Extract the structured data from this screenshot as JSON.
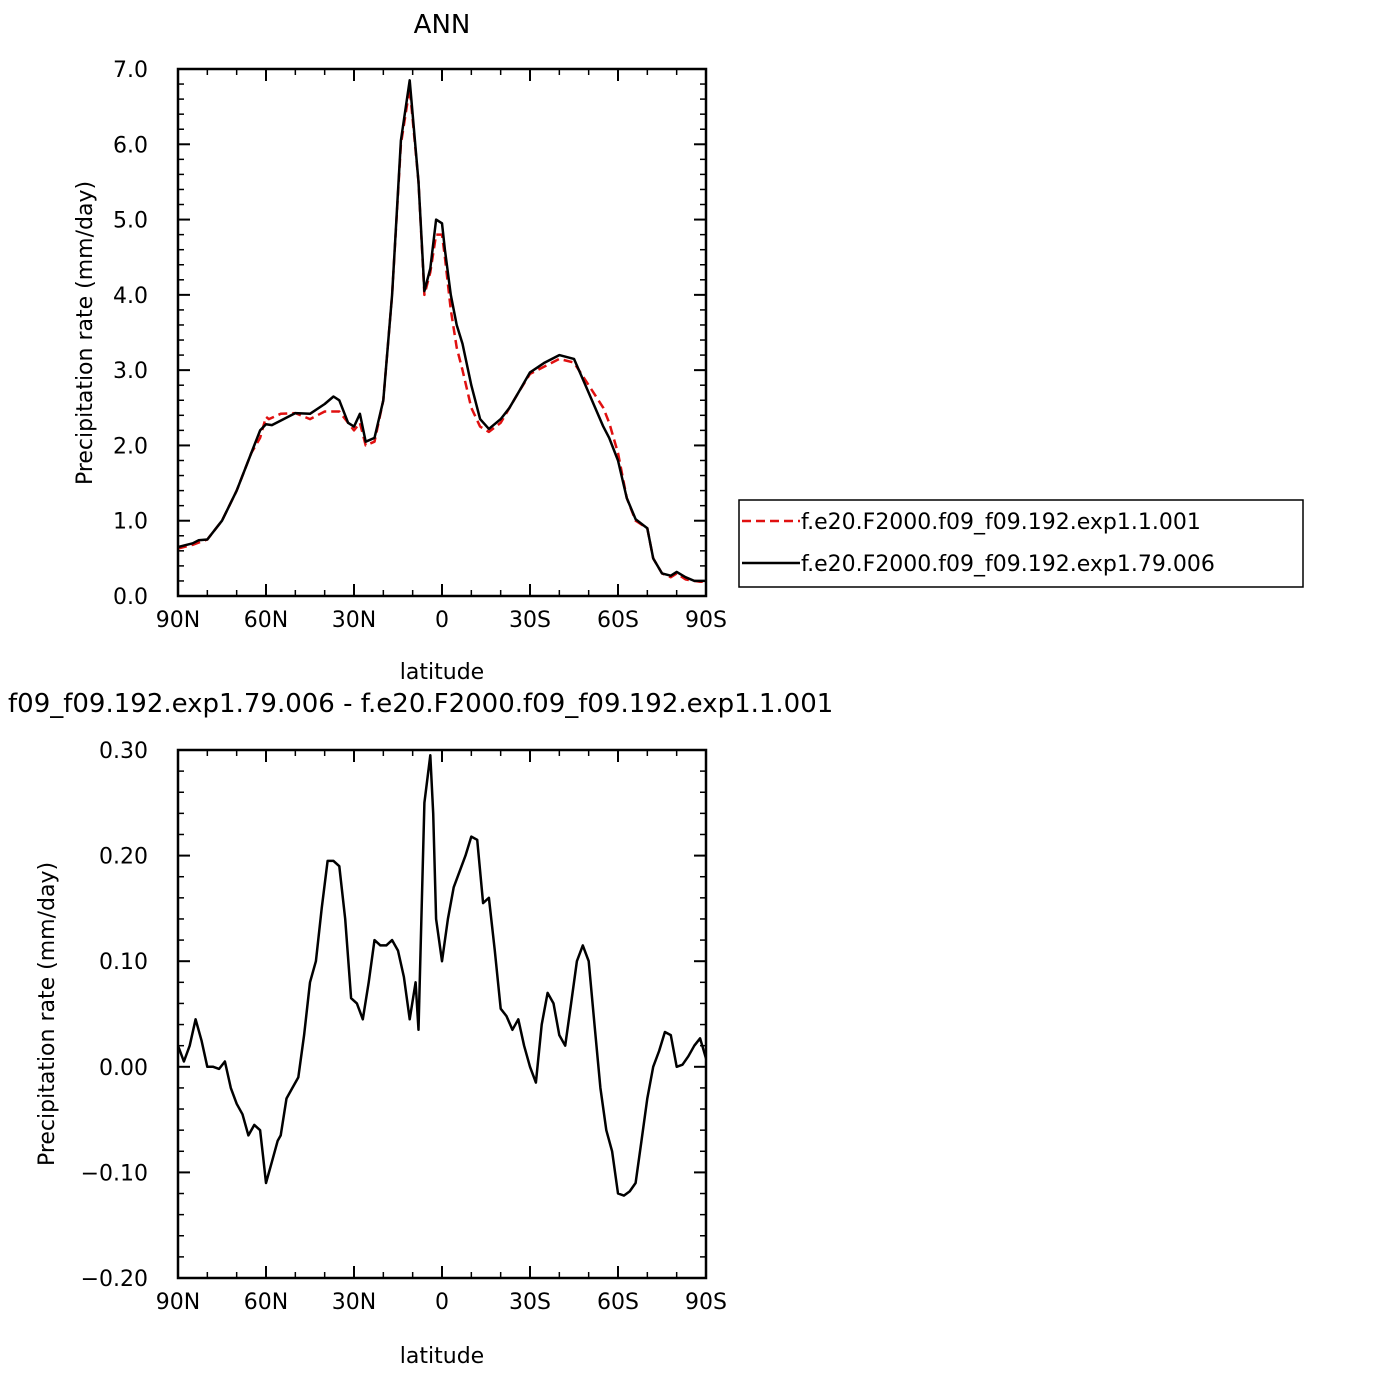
{
  "chart_data": [
    {
      "type": "line",
      "title": "ANN",
      "xlabel": "latitude",
      "ylabel": "Precipitation rate (mm/day)",
      "xlim": [
        90,
        -90
      ],
      "ylim": [
        0,
        7
      ],
      "x_ticks": [
        90,
        60,
        30,
        0,
        -30,
        -60,
        -90
      ],
      "x_tick_labels": [
        "90N",
        "60N",
        "30N",
        "0",
        "30S",
        "60S",
        "90S"
      ],
      "y_ticks": [
        0,
        1,
        2,
        3,
        4,
        5,
        6,
        7
      ],
      "y_tick_labels": [
        "0.0",
        "1.0",
        "2.0",
        "3.0",
        "4.0",
        "5.0",
        "6.0",
        "7.0"
      ],
      "legend": "right",
      "series": [
        {
          "name": "f.e20.F2000.f09_f09.192.exp1.1.001",
          "color": "#e01010",
          "dash": "dashed",
          "x": [
            90,
            85,
            80,
            75,
            70,
            65,
            62,
            60,
            59,
            55,
            50,
            45,
            40,
            35,
            30,
            28,
            26,
            23,
            20,
            17,
            14,
            11,
            8,
            6,
            4,
            2,
            0,
            -1,
            -3,
            -5,
            -7,
            -10,
            -13,
            -16,
            -20,
            -23,
            -26,
            -30,
            -35,
            -40,
            -45,
            -50,
            -55,
            -57,
            -60,
            -63,
            -66,
            -70,
            -72,
            -75,
            -78,
            -80,
            -83,
            -86,
            -88,
            -90
          ],
          "y": [
            0.63,
            0.68,
            0.75,
            1.0,
            1.4,
            1.9,
            2.1,
            2.38,
            2.35,
            2.42,
            2.43,
            2.35,
            2.45,
            2.45,
            2.2,
            2.3,
            2.0,
            2.05,
            2.6,
            4.0,
            6.0,
            6.75,
            5.5,
            4.0,
            4.3,
            4.8,
            4.8,
            4.5,
            3.8,
            3.3,
            3.0,
            2.5,
            2.25,
            2.18,
            2.3,
            2.5,
            2.7,
            2.95,
            3.05,
            3.15,
            3.1,
            2.8,
            2.5,
            2.3,
            1.9,
            1.3,
            1.0,
            0.9,
            0.5,
            0.3,
            0.25,
            0.3,
            0.22,
            0.2,
            0.19,
            0.19
          ]
        },
        {
          "name": "f.e20.F2000.f09_f09.192.exp1.79.006",
          "color": "#000000",
          "dash": "solid",
          "x": [
            90,
            85,
            83,
            80,
            75,
            70,
            65,
            62,
            60,
            58,
            55,
            50,
            45,
            40,
            37,
            35,
            32,
            30,
            28,
            26,
            23,
            20,
            17,
            14,
            11,
            8,
            6,
            4,
            2,
            0,
            -1,
            -3,
            -5,
            -7,
            -10,
            -13,
            -16,
            -20,
            -23,
            -26,
            -30,
            -35,
            -40,
            -45,
            -50,
            -55,
            -57,
            -60,
            -63,
            -66,
            -70,
            -72,
            -75,
            -78,
            -80,
            -83,
            -86,
            -88,
            -90
          ],
          "y": [
            0.65,
            0.7,
            0.74,
            0.75,
            1.0,
            1.4,
            1.9,
            2.2,
            2.28,
            2.27,
            2.33,
            2.43,
            2.42,
            2.55,
            2.65,
            2.6,
            2.3,
            2.25,
            2.42,
            2.05,
            2.1,
            2.6,
            4.0,
            6.05,
            6.85,
            5.5,
            4.05,
            4.35,
            5.0,
            4.95,
            4.6,
            4.0,
            3.6,
            3.35,
            2.8,
            2.35,
            2.22,
            2.35,
            2.5,
            2.7,
            2.97,
            3.1,
            3.2,
            3.15,
            2.7,
            2.25,
            2.1,
            1.8,
            1.3,
            1.02,
            0.9,
            0.5,
            0.3,
            0.27,
            0.32,
            0.25,
            0.2,
            0.2,
            0.2
          ]
        }
      ]
    },
    {
      "type": "line",
      "title": "f09_f09.192.exp1.79.006 - f.e20.F2000.f09_f09.192.exp1.1.001",
      "xlabel": "latitude",
      "ylabel": "Precipitation rate (mm/day)",
      "xlim": [
        90,
        -90
      ],
      "ylim": [
        -0.2,
        0.3
      ],
      "x_ticks": [
        90,
        60,
        30,
        0,
        -30,
        -60,
        -90
      ],
      "x_tick_labels": [
        "90N",
        "60N",
        "30N",
        "0",
        "30S",
        "60S",
        "90S"
      ],
      "y_ticks": [
        -0.2,
        -0.1,
        0,
        0.1,
        0.2,
        0.3
      ],
      "y_tick_labels": [
        "−0.20",
        "−0.10",
        "0.00",
        "0.10",
        "0.20",
        "0.30"
      ],
      "series": [
        {
          "color": "#000000",
          "dash": "solid",
          "x": [
            90,
            88,
            86,
            84,
            82,
            80,
            78,
            76,
            74,
            72,
            70,
            68,
            66,
            64,
            62,
            61,
            60,
            58,
            56,
            55,
            53,
            51,
            49,
            47,
            45,
            43,
            41,
            39,
            37,
            35,
            33,
            31,
            29,
            27,
            25,
            23,
            21,
            19,
            17,
            15,
            13,
            11,
            9,
            8,
            6,
            4,
            3,
            2,
            0,
            -2,
            -4,
            -6,
            -8,
            -10,
            -12,
            -14,
            -16,
            -18,
            -20,
            -22,
            -24,
            -26,
            -28,
            -30,
            -32,
            -34,
            -36,
            -38,
            -40,
            -42,
            -44,
            -46,
            -48,
            -50,
            -52,
            -54,
            -56,
            -58,
            -60,
            -62,
            -64,
            -66,
            -68,
            -70,
            -72,
            -74,
            -76,
            -78,
            -80,
            -82,
            -84,
            -86,
            -88,
            -90
          ],
          "y": [
            0.02,
            0.005,
            0.02,
            0.045,
            0.025,
            0.0,
            0.0,
            -0.002,
            0.005,
            -0.02,
            -0.035,
            -0.045,
            -0.065,
            -0.055,
            -0.06,
            -0.085,
            -0.11,
            -0.09,
            -0.07,
            -0.065,
            -0.03,
            -0.02,
            -0.01,
            0.03,
            0.08,
            0.1,
            0.15,
            0.195,
            0.195,
            0.19,
            0.14,
            0.065,
            0.06,
            0.045,
            0.08,
            0.12,
            0.115,
            0.115,
            0.12,
            0.11,
            0.085,
            0.045,
            0.08,
            0.035,
            0.25,
            0.295,
            0.24,
            0.14,
            0.1,
            0.14,
            0.17,
            0.185,
            0.2,
            0.218,
            0.215,
            0.155,
            0.16,
            0.11,
            0.055,
            0.048,
            0.035,
            0.045,
            0.02,
            0.0,
            -0.015,
            0.04,
            0.07,
            0.06,
            0.03,
            0.02,
            0.06,
            0.1,
            0.115,
            0.1,
            0.04,
            -0.02,
            -0.06,
            -0.08,
            -0.12,
            -0.122,
            -0.118,
            -0.11,
            -0.07,
            -0.03,
            0.0,
            0.015,
            0.033,
            0.03,
            0.0,
            0.002,
            0.01,
            0.02,
            0.027,
            0.008
          ]
        }
      ]
    }
  ]
}
